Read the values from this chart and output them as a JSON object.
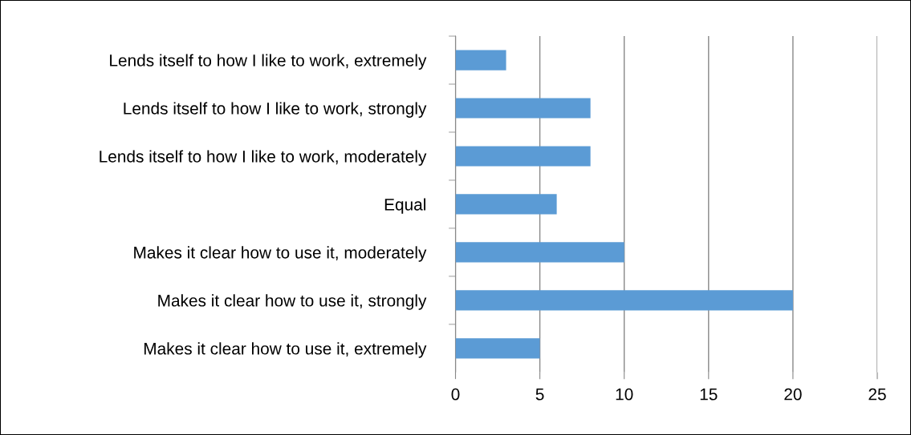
{
  "chart_data": {
    "type": "bar",
    "orientation": "horizontal",
    "categories": [
      "Lends itself to how I like to work, extremely",
      "Lends itself to how I like to work, strongly",
      "Lends itself to how I like to work, moderately",
      "Equal",
      "Makes it clear how to use it, moderately",
      "Makes it clear how to use it, strongly",
      "Makes it clear how to use it, extremely"
    ],
    "values": [
      3,
      8,
      8,
      6,
      10,
      20,
      5
    ],
    "color": "#5b9bd5",
    "xlim": [
      0,
      25
    ],
    "xticks": [
      0,
      5,
      10,
      15,
      20,
      25
    ],
    "grid": "x"
  }
}
